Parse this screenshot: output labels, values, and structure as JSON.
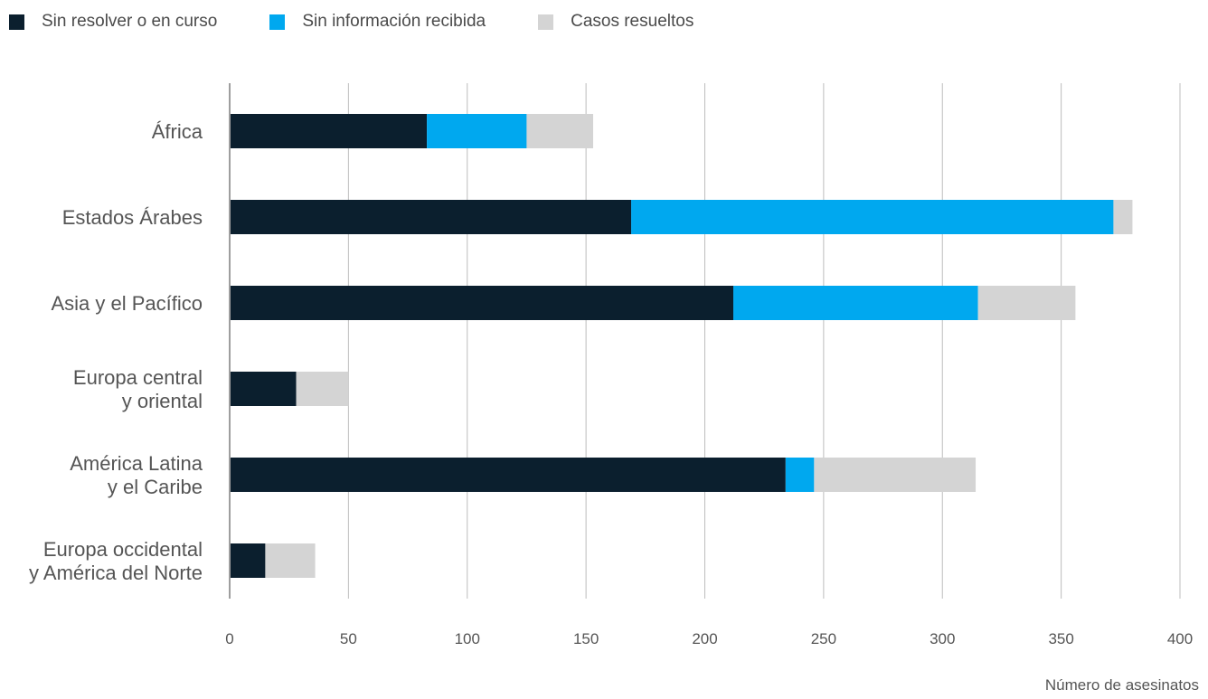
{
  "chart_data": {
    "type": "bar",
    "orientation": "horizontal",
    "stacked": true,
    "categories": [
      [
        "África"
      ],
      [
        "Estados Árabes"
      ],
      [
        "Asia y el Pacífico"
      ],
      [
        "Europa central",
        "y oriental"
      ],
      [
        "América Latina",
        "y el Caribe"
      ],
      [
        "Europa occidental",
        "y América del Norte"
      ]
    ],
    "series": [
      {
        "name": "Sin resolver o en curso",
        "color": "#0b1f2e",
        "values": [
          83,
          169,
          212,
          28,
          234,
          15
        ]
      },
      {
        "name": "Sin información recibida",
        "color": "#00a8ef",
        "values": [
          42,
          203,
          103,
          0,
          12,
          0
        ]
      },
      {
        "name": "Casos resueltos",
        "color": "#d4d4d4",
        "values": [
          28,
          8,
          41,
          22,
          68,
          21
        ]
      }
    ],
    "xlim": [
      0,
      400
    ],
    "xticks": [
      0,
      50,
      100,
      150,
      200,
      250,
      300,
      350,
      400
    ],
    "xlabel": "Número de asesinatos",
    "grid": true,
    "legend_position": "top-left"
  }
}
